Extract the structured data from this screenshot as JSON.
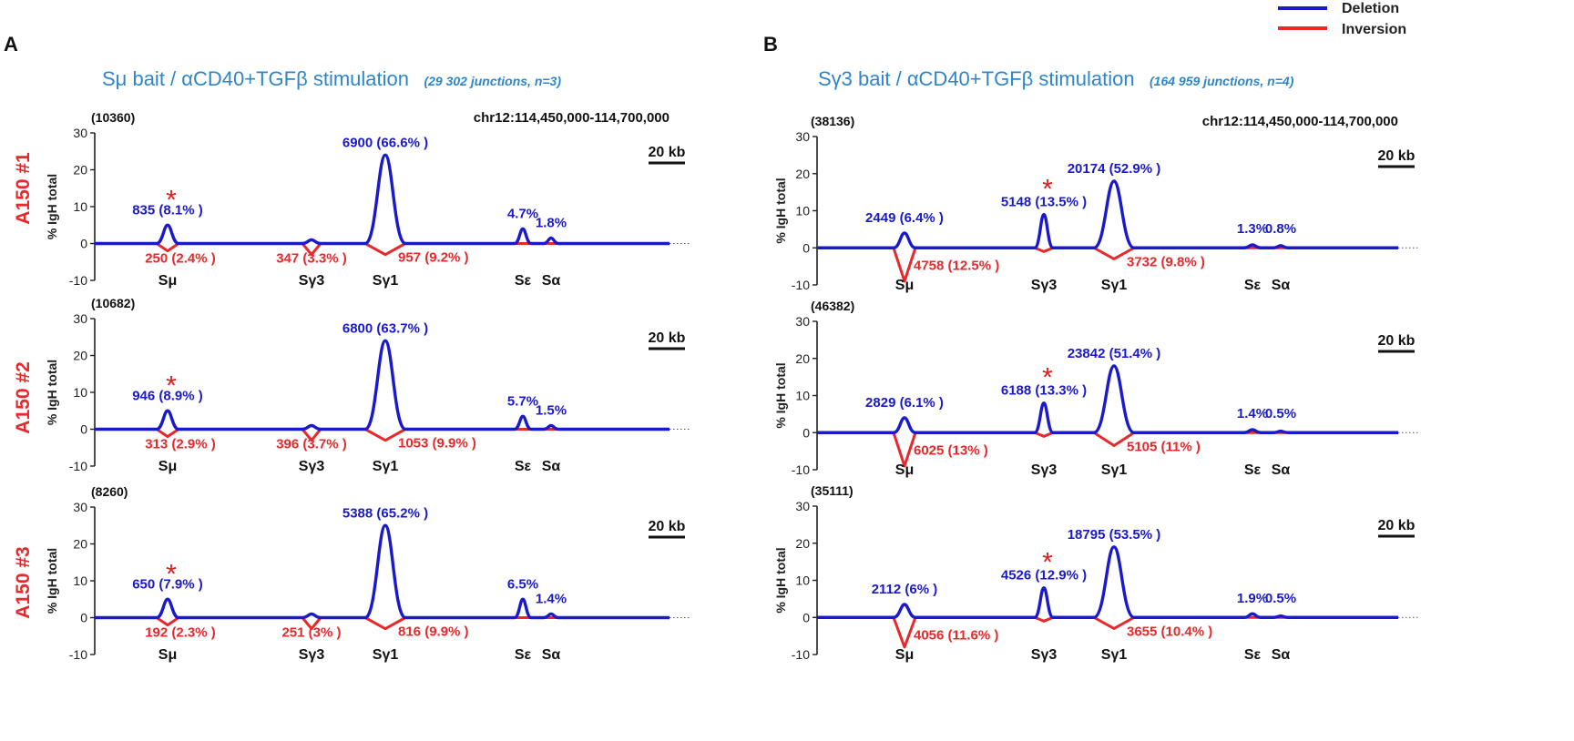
{
  "legend": {
    "items": [
      {
        "label": "Deletion",
        "color": "#1a1acc"
      },
      {
        "label": "Inversion",
        "color": "#e8282a"
      }
    ]
  },
  "colors": {
    "deletion": "#1a1acc",
    "inversion": "#e8282a",
    "title": "#2e86c8",
    "row_label": "#e8282a",
    "star": "#d92020",
    "axis": "#222222"
  },
  "common": {
    "ylabel": "% IgH total",
    "locus": "chr12:114,450,000-114,700,000",
    "scale": "20 kb",
    "star": "*",
    "yticks": [
      30,
      20,
      10,
      0,
      -10
    ],
    "ytick_labels": [
      "30",
      "20",
      "10",
      "0",
      "-10"
    ]
  },
  "chart_data": [
    {
      "panel": "A",
      "title_main": "Sμ bait / αCD40+TGFβ stimulation",
      "title_sub": "(29 302 junctions, n=3)",
      "plots": [
        {
          "row_label": "A150 #1",
          "total": "(10360)",
          "type": "line",
          "ylim": [
            -10,
            30
          ],
          "regions": [
            {
              "name": "Sμ",
              "deletion": 5,
              "inversion": -2,
              "del_label": "835 (8.1% )",
              "inv_label": "250 (2.4% )",
              "star": true
            },
            {
              "name": "Sγ3",
              "deletion": 1,
              "inversion": -3,
              "del_label": "",
              "inv_label": "347 (3.3% )",
              "star": false
            },
            {
              "name": "Sγ1",
              "deletion": 24,
              "inversion": -3,
              "del_label": "6900 (66.6% )",
              "inv_label": "957 (9.2% )",
              "star": false
            },
            {
              "name": "Sε",
              "deletion": 4,
              "inversion": 0,
              "del_label": "4.7%",
              "inv_label": "",
              "star": false
            },
            {
              "name": "Sα",
              "deletion": 1.5,
              "inversion": 0,
              "del_label": "1.8%",
              "inv_label": "",
              "star": false
            }
          ]
        },
        {
          "row_label": "A150 #2",
          "total": "(10682)",
          "type": "line",
          "ylim": [
            -10,
            30
          ],
          "regions": [
            {
              "name": "Sμ",
              "deletion": 5,
              "inversion": -2,
              "del_label": "946 (8.9% )",
              "inv_label": "313 (2.9% )",
              "star": true
            },
            {
              "name": "Sγ3",
              "deletion": 1,
              "inversion": -3,
              "del_label": "",
              "inv_label": "396 (3.7% )",
              "star": false
            },
            {
              "name": "Sγ1",
              "deletion": 24,
              "inversion": -3,
              "del_label": "6800 (63.7% )",
              "inv_label": "1053 (9.9% )",
              "star": false
            },
            {
              "name": "Sε",
              "deletion": 3.5,
              "inversion": 0,
              "del_label": "5.7%",
              "inv_label": "",
              "star": false
            },
            {
              "name": "Sα",
              "deletion": 1,
              "inversion": 0,
              "del_label": "1.5%",
              "inv_label": "",
              "star": false
            }
          ]
        },
        {
          "row_label": "A150 #3",
          "total": "(8260)",
          "type": "line",
          "ylim": [
            -10,
            30
          ],
          "regions": [
            {
              "name": "Sμ",
              "deletion": 5,
              "inversion": -2,
              "del_label": "650 (7.9% )",
              "inv_label": "192 (2.3% )",
              "star": true
            },
            {
              "name": "Sγ3",
              "deletion": 1,
              "inversion": -3,
              "del_label": "",
              "inv_label": "251 (3% )",
              "star": false
            },
            {
              "name": "Sγ1",
              "deletion": 25,
              "inversion": -3,
              "del_label": "5388 (65.2% )",
              "inv_label": "816 (9.9% )",
              "star": false
            },
            {
              "name": "Sε",
              "deletion": 5,
              "inversion": 0,
              "del_label": "6.5%",
              "inv_label": "",
              "star": false
            },
            {
              "name": "Sα",
              "deletion": 1,
              "inversion": 0,
              "del_label": "1.4%",
              "inv_label": "",
              "star": false
            }
          ]
        }
      ]
    },
    {
      "panel": "B",
      "title_main": "Sγ3 bait / αCD40+TGFβ stimulation",
      "title_sub": "(164 959 junctions, n=4)",
      "plots": [
        {
          "row_label": "",
          "total": "(38136)",
          "type": "line",
          "ylim": [
            -10,
            30
          ],
          "regions": [
            {
              "name": "Sμ",
              "deletion": 4,
              "inversion": -9,
              "del_label": "2449 (6.4% )",
              "inv_label": "4758 (12.5% )",
              "star": false
            },
            {
              "name": "Sγ3",
              "deletion": 9,
              "inversion": -1,
              "del_label": "5148 (13.5% )",
              "inv_label": "",
              "star": true
            },
            {
              "name": "Sγ1",
              "deletion": 18,
              "inversion": -3,
              "del_label": "20174 (52.9% )",
              "inv_label": "3732 (9.8% )",
              "star": false
            },
            {
              "name": "Sε",
              "deletion": 0.8,
              "inversion": 0,
              "del_label": "1.3%",
              "inv_label": "",
              "star": false
            },
            {
              "name": "Sα",
              "deletion": 0.6,
              "inversion": 0,
              "del_label": "0.8%",
              "inv_label": "",
              "star": false
            }
          ]
        },
        {
          "row_label": "",
          "total": "(46382)",
          "type": "line",
          "ylim": [
            -10,
            30
          ],
          "regions": [
            {
              "name": "Sμ",
              "deletion": 4,
              "inversion": -9,
              "del_label": "2829 (6.1% )",
              "inv_label": "6025 (13% )",
              "star": false
            },
            {
              "name": "Sγ3",
              "deletion": 8,
              "inversion": -1,
              "del_label": "6188 (13.3% )",
              "inv_label": "",
              "star": true
            },
            {
              "name": "Sγ1",
              "deletion": 18,
              "inversion": -3.5,
              "del_label": "23842 (51.4% )",
              "inv_label": "5105 (11% )",
              "star": false
            },
            {
              "name": "Sε",
              "deletion": 0.8,
              "inversion": 0,
              "del_label": "1.4%",
              "inv_label": "",
              "star": false
            },
            {
              "name": "Sα",
              "deletion": 0.4,
              "inversion": 0,
              "del_label": "0.5%",
              "inv_label": "",
              "star": false
            }
          ]
        },
        {
          "row_label": "",
          "total": "(35111)",
          "type": "line",
          "ylim": [
            -10,
            30
          ],
          "regions": [
            {
              "name": "Sμ",
              "deletion": 3.5,
              "inversion": -8,
              "del_label": "2112 (6% )",
              "inv_label": "4056 (11.6% )",
              "star": false
            },
            {
              "name": "Sγ3",
              "deletion": 8,
              "inversion": -1,
              "del_label": "4526 (12.9% )",
              "inv_label": "",
              "star": true
            },
            {
              "name": "Sγ1",
              "deletion": 19,
              "inversion": -3,
              "del_label": "18795 (53.5% )",
              "inv_label": "3655 (10.4% )",
              "star": false
            },
            {
              "name": "Sε",
              "deletion": 1,
              "inversion": 0,
              "del_label": "1.9%",
              "inv_label": "",
              "star": false
            },
            {
              "name": "Sα",
              "deletion": 0.4,
              "inversion": 0,
              "del_label": "0.5%",
              "inv_label": "",
              "star": false
            }
          ]
        }
      ]
    }
  ]
}
